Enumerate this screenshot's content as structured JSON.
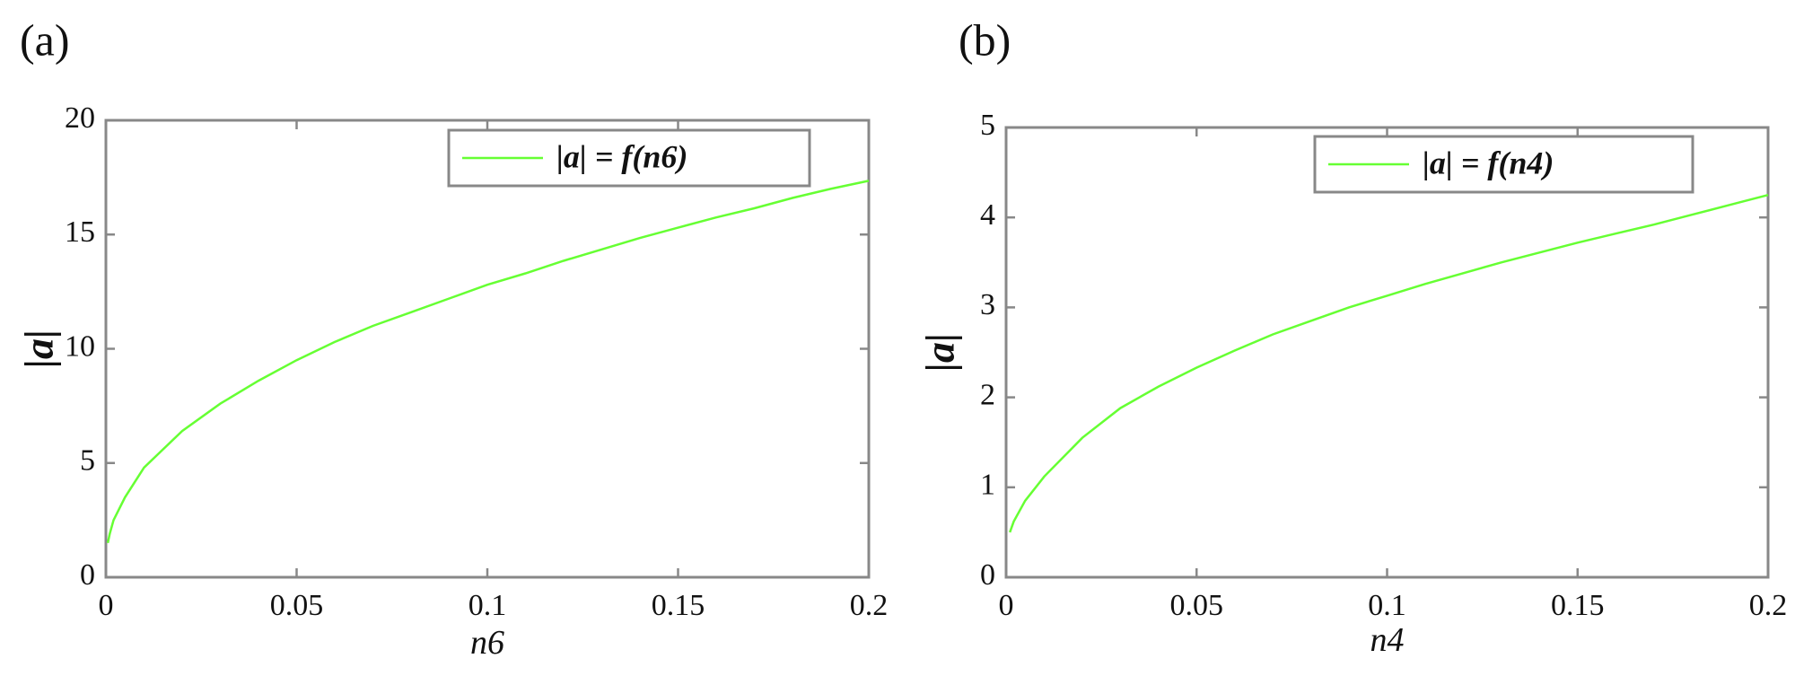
{
  "chart_data": [
    {
      "type": "line",
      "panel_label": "(a)",
      "xlabel": "n6",
      "ylabel": "|a|",
      "xlim": [
        0,
        0.2
      ],
      "ylim": [
        0,
        20
      ],
      "xticks": [
        "0",
        "0.05",
        "0.1",
        "0.15",
        "0.2"
      ],
      "yticks": [
        "0",
        "5",
        "10",
        "15",
        "20"
      ],
      "grid": false,
      "legend_position": "top-right",
      "series": [
        {
          "name": "|a| = f(n6)",
          "color": "#66ff33",
          "x": [
            0.0005,
            0.001,
            0.002,
            0.005,
            0.01,
            0.02,
            0.03,
            0.04,
            0.05,
            0.06,
            0.07,
            0.08,
            0.09,
            0.1,
            0.11,
            0.12,
            0.13,
            0.14,
            0.15,
            0.16,
            0.17,
            0.18,
            0.19,
            0.2
          ],
          "y": [
            1.5,
            1.9,
            2.5,
            3.5,
            4.8,
            6.4,
            7.6,
            8.6,
            9.5,
            10.3,
            11.0,
            11.6,
            12.2,
            12.8,
            13.3,
            13.85,
            14.35,
            14.85,
            15.3,
            15.75,
            16.15,
            16.6,
            17.0,
            17.35
          ]
        }
      ]
    },
    {
      "type": "line",
      "panel_label": "(b)",
      "xlabel": "n4",
      "ylabel": "|a|",
      "xlim": [
        0,
        0.2
      ],
      "ylim": [
        0,
        5
      ],
      "xticks": [
        "0",
        "0.05",
        "0.1",
        "0.15",
        "0.2"
      ],
      "yticks": [
        "0",
        "1",
        "2",
        "3",
        "4",
        "5"
      ],
      "grid": false,
      "legend_position": "top-right",
      "series": [
        {
          "name": "|a| = f(n4)",
          "color": "#66ff33",
          "x": [
            0.001,
            0.002,
            0.005,
            0.01,
            0.02,
            0.03,
            0.04,
            0.05,
            0.06,
            0.07,
            0.08,
            0.09,
            0.1,
            0.11,
            0.12,
            0.13,
            0.14,
            0.15,
            0.16,
            0.17,
            0.18,
            0.19,
            0.2
          ],
          "y": [
            0.5,
            0.62,
            0.85,
            1.12,
            1.55,
            1.88,
            2.12,
            2.33,
            2.52,
            2.7,
            2.85,
            3.0,
            3.13,
            3.26,
            3.38,
            3.5,
            3.61,
            3.72,
            3.82,
            3.92,
            4.03,
            4.14,
            4.25
          ]
        }
      ]
    }
  ]
}
